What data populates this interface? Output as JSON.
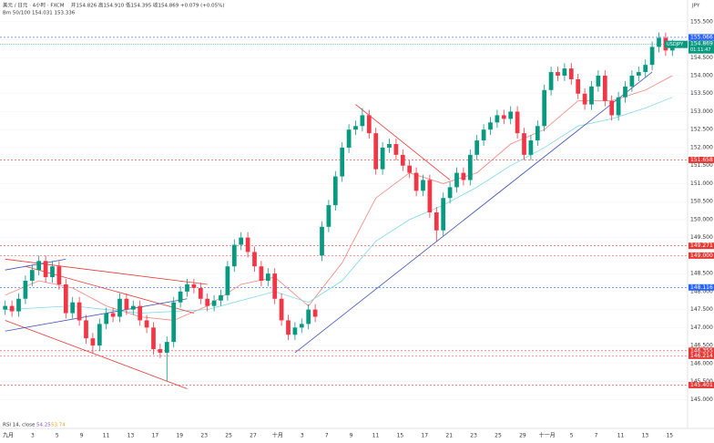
{
  "chart_data": {
    "type": "candlestick",
    "header": {
      "symbol_line": "美元 / 日元 · 4小时 · FXCM",
      "ohlc_line": "开154.826 高154.910 低154.395 收154.869 +0.079 (+0.05%)",
      "ma_line": "Bm 50/100 154.031 153.336",
      "currency": "JPY"
    },
    "rsi": {
      "label": "RSI 14, close",
      "value1": "54.25",
      "value2": "53.74"
    },
    "ylim": [
      144.45,
      155.9
    ],
    "yticks": [
      {
        "value": 145,
        "label": "145.000"
      },
      {
        "value": 145.5,
        "label": "145.500"
      },
      {
        "value": 146,
        "label": "146.000"
      },
      {
        "value": 146.5,
        "label": "146.500"
      },
      {
        "value": 147,
        "label": "147.000"
      },
      {
        "value": 147.5,
        "label": "147.500"
      },
      {
        "value": 148,
        "label": "148.000"
      },
      {
        "value": 148.5,
        "label": "148.500"
      },
      {
        "value": 149,
        "label": "149.000"
      },
      {
        "value": 149.5,
        "label": "149.500"
      },
      {
        "value": 150,
        "label": "150.000"
      },
      {
        "value": 150.5,
        "label": "150.500"
      },
      {
        "value": 151,
        "label": "151.000"
      },
      {
        "value": 151.5,
        "label": "151.500"
      },
      {
        "value": 152,
        "label": "152.000"
      },
      {
        "value": 152.5,
        "label": "152.500"
      },
      {
        "value": 153,
        "label": "153.000"
      },
      {
        "value": 153.5,
        "label": "153.500"
      },
      {
        "value": 154,
        "label": "154.000"
      },
      {
        "value": 154.5,
        "label": "154.500"
      },
      {
        "value": 155,
        "label": "155.000"
      },
      {
        "value": 155.5,
        "label": "155.500"
      }
    ],
    "xlabels": [
      "九月",
      "3",
      "5",
      "9",
      "11",
      "13",
      "17",
      "19",
      "23",
      "25",
      "27",
      "十月",
      "3",
      "7",
      "9",
      "11",
      "15",
      "17",
      "21",
      "23",
      "25",
      "29",
      "十一月",
      "5",
      "7",
      "11",
      "13",
      "15"
    ],
    "up_color": "#089981",
    "down_color": "#f23645",
    "candles": [
      [
        147.5,
        147.75,
        147.35,
        147.6
      ],
      [
        147.6,
        147.75,
        147.3,
        147.45
      ],
      [
        147.45,
        147.95,
        147.3,
        147.8
      ],
      [
        147.8,
        148.45,
        147.65,
        148.3
      ],
      [
        148.3,
        148.75,
        148.15,
        148.6
      ],
      [
        148.6,
        149,
        148.45,
        148.85
      ],
      [
        148.85,
        149,
        148.25,
        148.4
      ],
      [
        148.4,
        148.85,
        148.25,
        148.7
      ],
      [
        148.7,
        148.85,
        148.05,
        148.2
      ],
      [
        148.2,
        148.35,
        147.25,
        147.4
      ],
      [
        147.4,
        147.85,
        147.25,
        147.7
      ],
      [
        147.7,
        147.85,
        147.05,
        147.2
      ],
      [
        147.2,
        147.35,
        146.55,
        146.7
      ],
      [
        146.7,
        146.85,
        146.3,
        146.5
      ],
      [
        146.5,
        147.25,
        146.35,
        147.1
      ],
      [
        147.1,
        147.55,
        146.95,
        147.4
      ],
      [
        147.4,
        147.55,
        147.15,
        147.3
      ],
      [
        147.3,
        147.95,
        147.15,
        147.8
      ],
      [
        147.8,
        147.95,
        147.35,
        147.5
      ],
      [
        147.5,
        147.75,
        147.35,
        147.6
      ],
      [
        147.6,
        147.75,
        147.05,
        147.2
      ],
      [
        147.2,
        147.35,
        146.85,
        147
      ],
      [
        147,
        147.15,
        146.25,
        146.4
      ],
      [
        146.4,
        146.55,
        146.15,
        146.3
      ],
      [
        146.3,
        146.75,
        145.5,
        146.6
      ],
      [
        146.6,
        147.85,
        146.45,
        147.7
      ],
      [
        147.7,
        148.15,
        147.55,
        148
      ],
      [
        148,
        148.35,
        147.85,
        148.2
      ],
      [
        148.2,
        148.35,
        147.95,
        148.1
      ],
      [
        148.1,
        148.25,
        147.65,
        147.8
      ],
      [
        147.8,
        147.95,
        147.45,
        147.6
      ],
      [
        147.6,
        147.9,
        147.45,
        147.75
      ],
      [
        147.75,
        148.05,
        147.6,
        147.9
      ],
      [
        147.9,
        148.85,
        147.75,
        148.7
      ],
      [
        148.7,
        149.45,
        148.55,
        149.3
      ],
      [
        149.3,
        149.65,
        149.15,
        149.5
      ],
      [
        149.5,
        149.65,
        148.95,
        149.1
      ],
      [
        149.1,
        149.25,
        148.55,
        148.7
      ],
      [
        148.7,
        148.85,
        148.15,
        148.3
      ],
      [
        148.3,
        148.65,
        148.15,
        148.5
      ],
      [
        148.5,
        148.65,
        147.65,
        147.8
      ],
      [
        147.8,
        147.95,
        147.05,
        147.2
      ],
      [
        147.2,
        147.35,
        146.65,
        146.8
      ],
      [
        146.8,
        147.15,
        146.65,
        147
      ],
      [
        147,
        147.25,
        146.85,
        147.1
      ],
      [
        147.1,
        147.65,
        146.95,
        147.5
      ],
      [
        147.5,
        147.65,
        147.15,
        147.3
      ],
      [
        149,
        149.95,
        148.85,
        149.8
      ],
      [
        149.8,
        150.55,
        149.65,
        150.4
      ],
      [
        150.4,
        151.35,
        150.25,
        151.2
      ],
      [
        151.2,
        152.15,
        151.05,
        152
      ],
      [
        152,
        152.65,
        151.85,
        152.5
      ],
      [
        152.5,
        152.75,
        152.35,
        152.6
      ],
      [
        152.6,
        153.1,
        152.45,
        152.9
      ],
      [
        152.9,
        153.05,
        152.25,
        152.4
      ],
      [
        152.4,
        152.55,
        151.25,
        151.4
      ],
      [
        151.4,
        152.15,
        151.25,
        152
      ],
      [
        152,
        152.25,
        151.85,
        152.1
      ],
      [
        152.1,
        152.25,
        151.65,
        151.8
      ],
      [
        151.8,
        151.95,
        151.35,
        151.5
      ],
      [
        151.5,
        151.65,
        151.15,
        151.3
      ],
      [
        151.3,
        151.45,
        150.65,
        150.8
      ],
      [
        150.8,
        151.25,
        150.65,
        151.1
      ],
      [
        151.1,
        151.25,
        150.05,
        150.2
      ],
      [
        150.2,
        150.35,
        149.4,
        149.7
      ],
      [
        149.7,
        150.75,
        149.55,
        150.6
      ],
      [
        150.6,
        151.05,
        150.45,
        150.9
      ],
      [
        150.9,
        151.45,
        150.75,
        151.3
      ],
      [
        151.3,
        151.45,
        150.95,
        151.1
      ],
      [
        151.1,
        151.95,
        150.95,
        151.8
      ],
      [
        151.8,
        152.35,
        151.65,
        152.2
      ],
      [
        152.2,
        152.65,
        152.05,
        152.5
      ],
      [
        152.5,
        152.85,
        152.35,
        152.7
      ],
      [
        152.7,
        153.05,
        152.55,
        152.9
      ],
      [
        152.9,
        153.05,
        152.65,
        152.8
      ],
      [
        152.8,
        153.15,
        152.65,
        153
      ],
      [
        153,
        153.15,
        152.25,
        152.4
      ],
      [
        152.4,
        152.55,
        151.65,
        151.8
      ],
      [
        151.8,
        152.35,
        151.65,
        152.2
      ],
      [
        152.2,
        152.75,
        152.05,
        152.6
      ],
      [
        152.6,
        153.75,
        152.45,
        153.6
      ],
      [
        153.6,
        154.25,
        153.45,
        154.1
      ],
      [
        154.1,
        154.25,
        153.85,
        154
      ],
      [
        154,
        154.35,
        153.85,
        154.2
      ],
      [
        154.2,
        154.35,
        153.75,
        153.9
      ],
      [
        153.9,
        154.05,
        153.35,
        153.5
      ],
      [
        153.5,
        153.65,
        153.05,
        153.2
      ],
      [
        153.2,
        153.85,
        153.05,
        153.7
      ],
      [
        153.7,
        154.15,
        153.55,
        154
      ],
      [
        154,
        154.15,
        153.15,
        153.3
      ],
      [
        153.3,
        153.45,
        152.75,
        152.9
      ],
      [
        152.9,
        153.55,
        152.75,
        153.4
      ],
      [
        153.4,
        153.85,
        153.25,
        153.7
      ],
      [
        153.7,
        154.15,
        153.55,
        154
      ],
      [
        154,
        154.25,
        153.85,
        154.1
      ],
      [
        154.1,
        154.45,
        153.95,
        154.3
      ],
      [
        154.3,
        154.95,
        154.15,
        154.8
      ],
      [
        154.8,
        155.2,
        154.65,
        155.05
      ],
      [
        155.05,
        155.2,
        154.55,
        154.7
      ],
      [
        154.7,
        155,
        154.55,
        154.85
      ]
    ],
    "series": [
      {
        "color": "#f4837d",
        "x": [
          0,
          5,
          10,
          15,
          20,
          25,
          30,
          35,
          40,
          45,
          50,
          55,
          60,
          65,
          70,
          75,
          80,
          85,
          90,
          95,
          99
        ],
        "values": [
          147.9,
          148.3,
          148.1,
          147.6,
          147.3,
          147.2,
          147.6,
          148.2,
          148.4,
          147.6,
          148.8,
          150.6,
          151.3,
          151,
          151.3,
          152.1,
          152.5,
          153.3,
          153.3,
          153.6,
          154
        ]
      },
      {
        "color": "#7fd8e8",
        "x": [
          0,
          10,
          20,
          30,
          40,
          45,
          50,
          55,
          60,
          65,
          70,
          75,
          80,
          85,
          90,
          95,
          99
        ],
        "values": [
          147.5,
          147.6,
          147.4,
          147.5,
          148,
          147.7,
          148.3,
          149.4,
          150,
          150.4,
          150.9,
          151.5,
          152,
          152.6,
          152.8,
          153.1,
          153.4
        ]
      }
    ],
    "trendlines": [
      {
        "color": "#3f51b5",
        "x": [
          43,
          96
        ],
        "values": [
          146.3,
          154.1
        ]
      },
      {
        "color": "#e53935",
        "x": [
          52,
          66
        ],
        "values": [
          153.2,
          151.1
        ]
      },
      {
        "color": "#e53935",
        "x": [
          0,
          30
        ],
        "values": [
          148.9,
          148.2
        ]
      },
      {
        "color": "#e53935",
        "x": [
          0,
          27
        ],
        "values": [
          147.2,
          145.3
        ]
      },
      {
        "color": "#e53935",
        "x": [
          3,
          28
        ],
        "values": [
          148.7,
          147.4
        ]
      },
      {
        "color": "#3f51b5",
        "x": [
          0,
          9
        ],
        "values": [
          148.6,
          148.9
        ]
      },
      {
        "color": "#3f51b5",
        "x": [
          0,
          27
        ],
        "values": [
          146.9,
          147.8
        ]
      }
    ],
    "levels": [
      {
        "value": 155.066,
        "label": "155.066",
        "color": "#2962ff"
      },
      {
        "value": 151.658,
        "label": "151.658",
        "color": "#e53935"
      },
      {
        "value": 149.271,
        "label": "149.271",
        "color": "#e53935"
      },
      {
        "value": 149,
        "label": "149.000",
        "color": "#e53935"
      },
      {
        "value": 148.116,
        "label": "148.116",
        "color": "#2962ff"
      },
      {
        "value": 146.355,
        "label": "146.355",
        "color": "#e53935"
      },
      {
        "value": 146.214,
        "label": "146.214",
        "color": "#e53935"
      },
      {
        "value": 145.401,
        "label": "145.401",
        "color": "#e53935"
      }
    ],
    "current": {
      "symbol": "USDJPY",
      "value": 154.869,
      "label": "154.869",
      "countdown": "01:11:47",
      "color": "#089981"
    }
  }
}
